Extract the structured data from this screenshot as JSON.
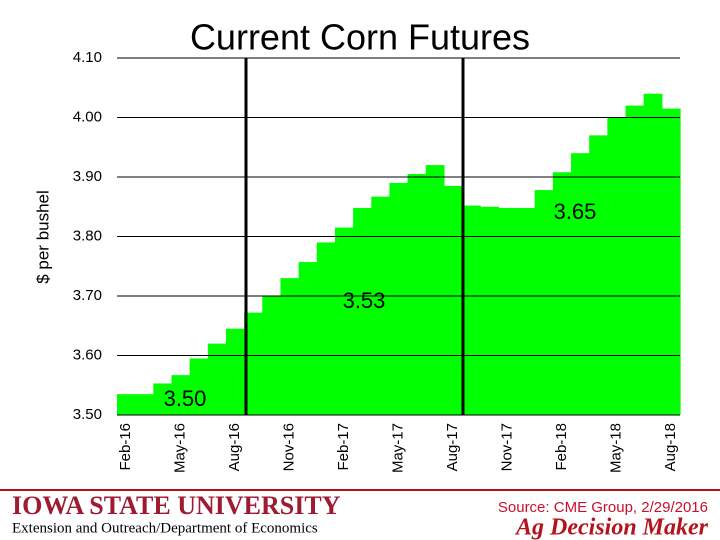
{
  "chart_data": {
    "type": "step-area",
    "title": "Current Corn Futures",
    "ylabel": "$ per bushel",
    "categories": [
      "Feb-16",
      null,
      null,
      "May-16",
      null,
      null,
      "Aug-16",
      null,
      null,
      "Nov-16",
      null,
      null,
      "Feb-17",
      null,
      null,
      "May-17",
      null,
      null,
      "Aug-17",
      null,
      null,
      "Nov-17",
      null,
      null,
      "Feb-18",
      null,
      null,
      "May-18",
      null,
      null,
      "Aug-18"
    ],
    "values": [
      3.535,
      3.535,
      3.553,
      3.567,
      3.595,
      3.62,
      3.645,
      3.672,
      3.7,
      3.73,
      3.757,
      3.79,
      3.815,
      3.848,
      3.867,
      3.89,
      3.905,
      3.92,
      3.885,
      3.852,
      3.85,
      3.848,
      3.848,
      3.878,
      3.908,
      3.94,
      3.97,
      4.0,
      4.02,
      4.04,
      4.015
    ],
    "color": "#00ff00",
    "ylim": [
      3.5,
      4.1
    ],
    "yticks": [
      {
        "value": 3.5,
        "label": "3.50"
      },
      {
        "value": 3.6,
        "label": "3.60"
      },
      {
        "value": 3.7,
        "label": "3.70"
      },
      {
        "value": 3.8,
        "label": "3.80"
      },
      {
        "value": 3.9,
        "label": "3.90"
      },
      {
        "value": 4.0,
        "label": "4.00"
      },
      {
        "value": 4.1,
        "label": "4.10"
      }
    ],
    "grid": true,
    "annotations": [
      "3.50",
      "3.53",
      "3.65"
    ]
  },
  "footer": {
    "university": "IOWA STATE UNIVERSITY",
    "department": "Extension and Outreach/Department of Economics",
    "source": "Source: CME Group, 2/29/2016",
    "brand": "Ag Decision Maker"
  }
}
